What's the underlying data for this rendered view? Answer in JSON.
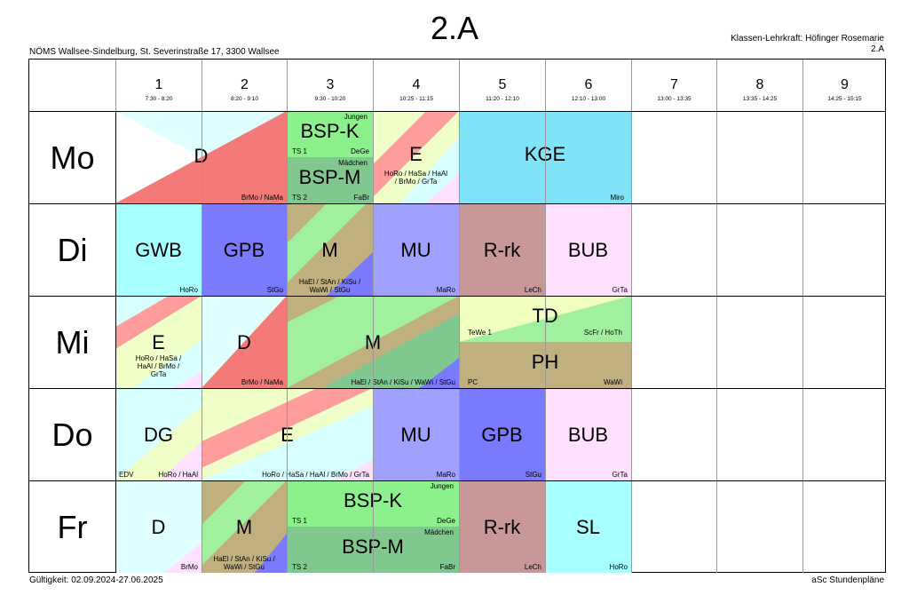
{
  "header": {
    "title": "2.A",
    "school": "NÖMS Wallsee-Sindelburg, St. Severinstraße 17, 3300 Wallsee",
    "teacher_line1": "Klassen-Lehrkraft: Höfinger Rosemarie",
    "teacher_line2": "2.A"
  },
  "periods": [
    {
      "num": "1",
      "time": "7:30 - 8:20"
    },
    {
      "num": "2",
      "time": "8:20 - 9:10"
    },
    {
      "num": "3",
      "time": "9:30 - 10:20"
    },
    {
      "num": "4",
      "time": "10:25 - 11:15"
    },
    {
      "num": "5",
      "time": "11:20 - 12:10"
    },
    {
      "num": "6",
      "time": "12:10 - 13:00"
    },
    {
      "num": "7",
      "time": "13:00 - 13:35"
    },
    {
      "num": "8",
      "time": "13:35 - 14:25"
    },
    {
      "num": "9",
      "time": "14:25 - 15:15"
    }
  ],
  "days": [
    "Mo",
    "Di",
    "Mi",
    "Do",
    "Fr"
  ],
  "lessons": {
    "mo_d": {
      "subject": "D",
      "teacher": "BrMo / NaMa"
    },
    "mo_bspk": {
      "subject": "BSP-K",
      "group": "Jungen",
      "room": "TS 1",
      "teacher": "DeGe"
    },
    "mo_bspm": {
      "subject": "BSP-M",
      "group": "Mädchen",
      "room": "TS 2",
      "teacher": "FaBr"
    },
    "mo_e": {
      "subject": "E",
      "teacher": "HoRo / HaSa / HaAl / BrMo / GrTa"
    },
    "mo_kge": {
      "subject": "KGE",
      "teacher": "Miro"
    },
    "di_gwb": {
      "subject": "GWB",
      "teacher": "HoRo"
    },
    "di_gpb": {
      "subject": "GPB",
      "teacher": "StGu"
    },
    "di_m": {
      "subject": "M",
      "teacher": "HaEl / StAn / KiSu / WaWi / StGu"
    },
    "di_mu": {
      "subject": "MU",
      "teacher": "MaRo"
    },
    "di_rrk": {
      "subject": "R-rk",
      "teacher": "LeCh"
    },
    "di_bub": {
      "subject": "BUB",
      "teacher": "GrTa"
    },
    "mi_e": {
      "subject": "E",
      "teacher": "HoRo / HaSa / HaAl / BrMo / GrTa"
    },
    "mi_d": {
      "subject": "D",
      "teacher": "BrMo / NaMa"
    },
    "mi_m": {
      "subject": "M",
      "teacher": "HaEl / StAn / KiSu / WaWi / StGu"
    },
    "mi_td": {
      "subject": "TD",
      "room": "TeWe 1",
      "teacher": "ScFr / HoTh"
    },
    "mi_ph": {
      "subject": "PH",
      "room": "PC",
      "teacher": "WaWi"
    },
    "do_dg": {
      "subject": "DG",
      "room": "EDV",
      "teacher": "HoRo / HaAl"
    },
    "do_e": {
      "subject": "E",
      "teacher": "HoRo / HaSa / HaAl / BrMo / GrTa"
    },
    "do_mu": {
      "subject": "MU",
      "teacher": "MaRo"
    },
    "do_gpb": {
      "subject": "GPB",
      "teacher": "StGu"
    },
    "do_bub": {
      "subject": "BUB",
      "teacher": "GrTa"
    },
    "fr_d": {
      "subject": "D",
      "teacher": "BrMo"
    },
    "fr_m": {
      "subject": "M",
      "teacher": "HaEl / StAn / KiSu / WaWi / StGu"
    },
    "fr_bspk": {
      "subject": "BSP-K",
      "group": "Jungen",
      "room": "TS 1",
      "teacher": "DeGe"
    },
    "fr_bspm": {
      "subject": "BSP-M",
      "group": "Mädchen",
      "room": "TS 2",
      "teacher": "FaBr"
    },
    "fr_rrk": {
      "subject": "R-rk",
      "teacher": "LeCh"
    },
    "fr_sl": {
      "subject": "SL",
      "teacher": "HoRo"
    }
  },
  "footer": {
    "validity": "Gültigkeit: 02.09.2024-27.06.2025",
    "brand": "aSc Stundenpläne"
  },
  "colors": {
    "d_red": "#f47a7a",
    "d_light": "#e0ffff",
    "e_pink": "#ff9c9c",
    "e_yellow": "#f0ffc8",
    "e_cyan": "#d8ffff",
    "bsp_k": "#8cf08c",
    "bsp_m": "#80c890",
    "kge": "#80e4f8",
    "gwb": "#a8ffff",
    "gpb": "#7a7aff",
    "m_olive": "#c0b080",
    "m_green": "#a0f0a0",
    "m_blue": "#7a7aff",
    "mu": "#a0a0ff",
    "rrk": "#c89898",
    "bub": "#ffe0ff",
    "td": "#f0ffc0",
    "ph": "#c0b080",
    "sl": "#a8ffff"
  }
}
